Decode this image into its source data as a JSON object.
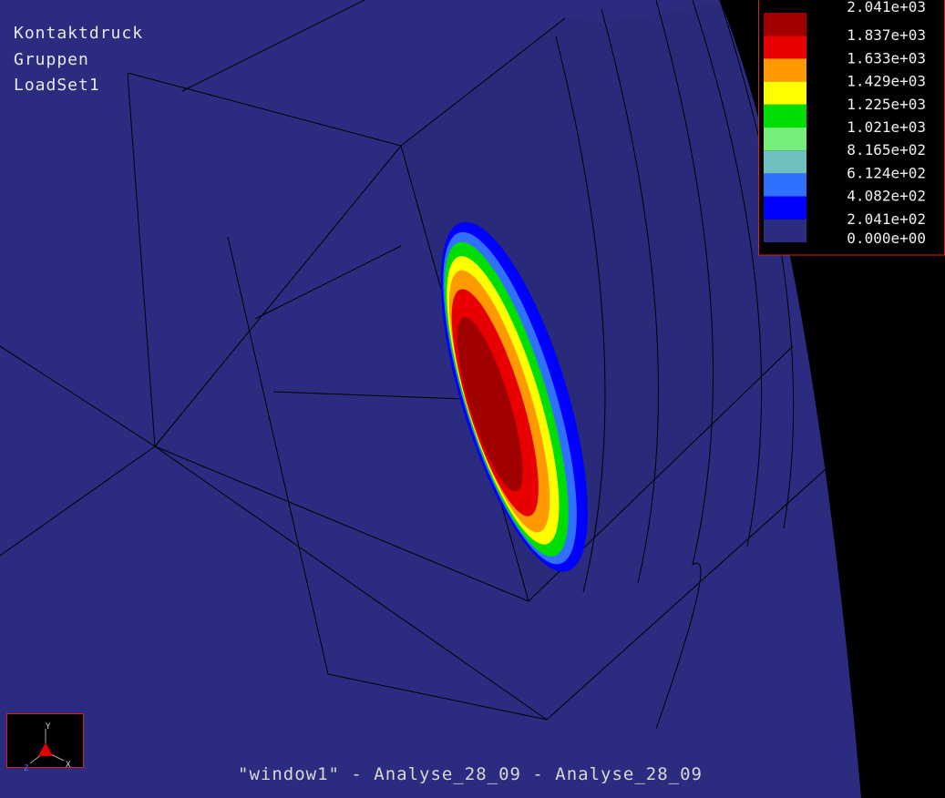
{
  "info": {
    "lines": [
      "Kontaktdruck",
      "Gruppen",
      "LoadSet1"
    ]
  },
  "legend": {
    "labels": [
      "2.041e+03",
      "1.837e+03",
      "1.633e+03",
      "1.429e+03",
      "1.225e+03",
      "1.021e+03",
      "8.165e+02",
      "6.124e+02",
      "4.082e+02",
      "2.041e+02",
      "0.000e+00"
    ],
    "colors": [
      "#a00000",
      "#e80000",
      "#ff9900",
      "#ffff00",
      "#00dd00",
      "#77ee77",
      "#70c0c0",
      "#3070ff",
      "#0000ff",
      "#2b2b80"
    ]
  },
  "triad": {
    "y": "Y",
    "x": "X",
    "z": "Z"
  },
  "footer": {
    "title": "\"window1\" - Analyse_28_09 - Analyse_28_09"
  }
}
